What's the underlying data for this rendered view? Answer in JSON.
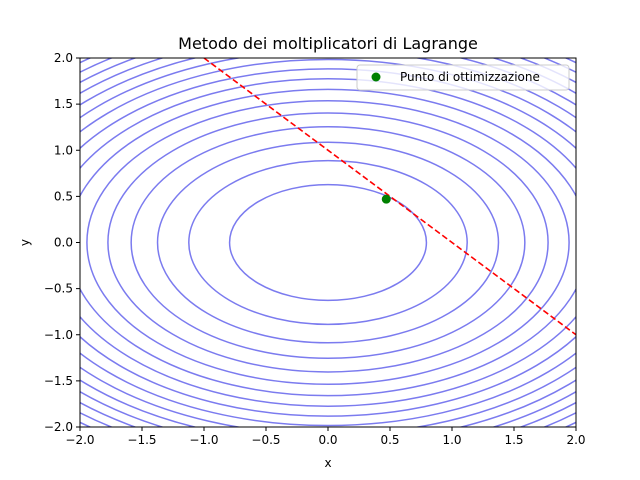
{
  "chart_data": {
    "type": "contour",
    "title": "Metodo dei moltiplicatori di Lagrange",
    "xlabel": "x",
    "ylabel": "y",
    "xlim": [
      -2.0,
      2.0
    ],
    "ylim": [
      -2.0,
      2.0
    ],
    "xticks": [
      -2.0,
      -1.5,
      -1.0,
      -0.5,
      0.0,
      0.5,
      1.0,
      1.5,
      2.0
    ],
    "yticks": [
      -2.0,
      -1.5,
      -1.0,
      -0.5,
      0.0,
      0.5,
      1.0,
      1.5,
      2.0
    ],
    "xtick_labels": [
      "−2.0",
      "−1.5",
      "−1.0",
      "−0.5",
      "0.0",
      "0.5",
      "1.0",
      "1.5",
      "2.0"
    ],
    "ytick_labels": [
      "−2.0",
      "−1.5",
      "−1.0",
      "−0.5",
      "0.0",
      "0.5",
      "1.0",
      "1.5",
      "2.0"
    ],
    "grid": false,
    "contours": {
      "function": "x^2 + 1.6*y^2",
      "levels": [
        0.63,
        1.26,
        1.89,
        2.52,
        3.15,
        3.78,
        4.41,
        5.04,
        5.67,
        6.3,
        6.93,
        7.56,
        8.19,
        8.82,
        9.45,
        10.08
      ],
      "center": [
        0.0,
        0.0
      ],
      "color": "#7b7bef"
    },
    "constraint_line": {
      "equation": "x + y = 1",
      "points": [
        [
          -1.0,
          2.0
        ],
        [
          2.0,
          -1.0
        ]
      ],
      "style": "dashed",
      "color": "#ff0000"
    },
    "optimum_point": {
      "x": 0.47,
      "y": 0.47,
      "label": "Punto di ottimizzazione",
      "color": "#008000"
    },
    "legend_placement": "top-right"
  }
}
